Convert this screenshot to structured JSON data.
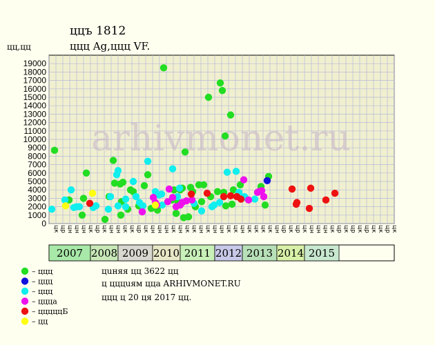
{
  "header": {
    "title": "ццъ 1812",
    "subtitle": "ццц Ag,ццц VF.",
    "yunit": "цц,цц"
  },
  "watermark": "arhivmonet.ru",
  "legend": {
    "items": [
      {
        "label": "– ццц",
        "color": "#22dd22"
      },
      {
        "label": "– ццц",
        "color": "#1111dd"
      },
      {
        "label": "– ццц",
        "color": "#11eeee"
      },
      {
        "label": "– ццца",
        "color": "#ee11ee"
      },
      {
        "label": "– цццццБ",
        "color": "#ee1111"
      },
      {
        "label": "– цц",
        "color": "#ffff11"
      }
    ]
  },
  "notes": [
    "цuняя цц 3622 цц",
    "ц цццuям ццa ARHIVMONET.RU",
    "ццц ц 20 ця 2017 цц."
  ],
  "colors": {
    "background": "#fffff0",
    "plot_bg": "#f0f0d0",
    "grid": "#b8b8d8",
    "green": "#22dd22",
    "blue": "#1111dd",
    "cyan": "#11eeee",
    "magenta": "#ee11ee",
    "red": "#ee1111",
    "yellow": "#ffff11"
  },
  "chart_data": {
    "type": "scatter",
    "ylim": [
      0,
      20000
    ],
    "yticks": [
      0,
      1000,
      2000,
      3000,
      4000,
      5000,
      6000,
      7000,
      8000,
      9000,
      10000,
      11000,
      12000,
      13000,
      14000,
      15000,
      16000,
      17000,
      18000,
      19000
    ],
    "x_categories": [
      "цк",
      "цр",
      "цн",
      "цн",
      "цн",
      "цк",
      "цр",
      "цк",
      "цн",
      "цн",
      "цк",
      "цк",
      "цр",
      "цк",
      "цн",
      "цн",
      "цн",
      "цк",
      "цн",
      "цк",
      "цк",
      "цн",
      "цк",
      "цн",
      "цн",
      "цк",
      "цк",
      "цн",
      "цк",
      "цк",
      "цк",
      "цк",
      "цн",
      "цр",
      "цк",
      "цр",
      "цк",
      "цн",
      "цн",
      "цн",
      "цк",
      "цр",
      "цк",
      "цр",
      "цк",
      "цр",
      "цк",
      "цк",
      "цр",
      "цк"
    ],
    "years": [
      {
        "label": "2007",
        "span": 6,
        "color": "#a8e8a8"
      },
      {
        "label": "2008",
        "span": 4,
        "color": "#c8e8b8"
      },
      {
        "label": "2009",
        "span": 5,
        "color": "#d8d8d0"
      },
      {
        "label": "2010",
        "span": 4,
        "color": "#e8e8c8"
      },
      {
        "label": "2011",
        "span": 5,
        "color": "#c8f0b8"
      },
      {
        "label": "2012",
        "span": 4,
        "color": "#c8c8e8"
      },
      {
        "label": "2013",
        "span": 5,
        "color": "#b8e0b8"
      },
      {
        "label": "2014",
        "span": 4,
        "color": "#d8f0a8"
      },
      {
        "label": "2015",
        "span": 5,
        "color": "#c8e8d0"
      }
    ],
    "series": [
      {
        "color_key": "green",
        "points": [
          [
            0.3,
            8700
          ],
          [
            2.4,
            2800
          ],
          [
            4.3,
            1000
          ],
          [
            4.5,
            3000
          ],
          [
            4.9,
            6000
          ],
          [
            7.6,
            500
          ],
          [
            8.2,
            3200
          ],
          [
            8.8,
            7500
          ],
          [
            9.0,
            4800
          ],
          [
            9.8,
            4700
          ],
          [
            9.9,
            1000
          ],
          [
            10.0,
            2600
          ],
          [
            10.2,
            4900
          ],
          [
            10.9,
            1700
          ],
          [
            11.3,
            4000
          ],
          [
            11.7,
            3800
          ],
          [
            12.5,
            2100
          ],
          [
            13.3,
            4500
          ],
          [
            13.8,
            5800
          ],
          [
            14.3,
            1800
          ],
          [
            15.2,
            1600
          ],
          [
            16.1,
            18500
          ],
          [
            17.3,
            2800
          ],
          [
            17.6,
            4000
          ],
          [
            17.9,
            1200
          ],
          [
            18.2,
            2500
          ],
          [
            18.5,
            4000
          ],
          [
            18.8,
            4200
          ],
          [
            19.0,
            700
          ],
          [
            19.2,
            8500
          ],
          [
            19.7,
            800
          ],
          [
            20.0,
            4300
          ],
          [
            20.3,
            3800
          ],
          [
            20.7,
            2000
          ],
          [
            21.2,
            4600
          ],
          [
            21.6,
            2600
          ],
          [
            21.9,
            4600
          ],
          [
            22.6,
            15000
          ],
          [
            22.9,
            3200
          ],
          [
            23.9,
            3800
          ],
          [
            24.3,
            16700
          ],
          [
            24.6,
            15800
          ],
          [
            24.8,
            3700
          ],
          [
            25.0,
            10400
          ],
          [
            25.1,
            2100
          ],
          [
            25.8,
            12900
          ],
          [
            26.0,
            2300
          ],
          [
            26.2,
            4000
          ],
          [
            27.0,
            3400
          ],
          [
            27.2,
            4600
          ],
          [
            30.2,
            4400
          ],
          [
            30.8,
            2200
          ],
          [
            31.3,
            5600
          ]
        ]
      },
      {
        "color_key": "blue",
        "points": [
          [
            31.1,
            5100
          ]
        ]
      },
      {
        "color_key": "cyan",
        "points": [
          [
            -0.1,
            1700
          ],
          [
            1.8,
            2800
          ],
          [
            2.7,
            4000
          ],
          [
            3.1,
            1900
          ],
          [
            3.5,
            2000
          ],
          [
            3.9,
            2000
          ],
          [
            5.9,
            1900
          ],
          [
            6.3,
            2100
          ],
          [
            8.1,
            1700
          ],
          [
            8.4,
            3200
          ],
          [
            9.3,
            5800
          ],
          [
            9.5,
            6300
          ],
          [
            9.5,
            2100
          ],
          [
            10.6,
            2000
          ],
          [
            10.6,
            2900
          ],
          [
            11.7,
            5000
          ],
          [
            12.1,
            3200
          ],
          [
            12.6,
            2500
          ],
          [
            13.1,
            2100
          ],
          [
            13.8,
            7400
          ],
          [
            14.9,
            3800
          ],
          [
            15.4,
            3400
          ],
          [
            15.8,
            3500
          ],
          [
            15.9,
            2200
          ],
          [
            17.4,
            6500
          ],
          [
            18.1,
            3200
          ],
          [
            18.4,
            4200
          ],
          [
            20.5,
            2400
          ],
          [
            21.6,
            1500
          ],
          [
            23.1,
            2000
          ],
          [
            23.4,
            2200
          ],
          [
            24.2,
            2500
          ],
          [
            25.3,
            6100
          ],
          [
            26.6,
            6200
          ],
          [
            27.0,
            3700
          ],
          [
            27.8,
            3200
          ],
          [
            27.9,
            3100
          ],
          [
            29.3,
            2900
          ]
        ]
      },
      {
        "color_key": "magenta",
        "points": [
          [
            13.0,
            1400
          ],
          [
            14.6,
            3100
          ],
          [
            14.9,
            2500
          ],
          [
            15.1,
            2200
          ],
          [
            16.7,
            2600
          ],
          [
            16.9,
            4100
          ],
          [
            17.4,
            3100
          ],
          [
            17.9,
            2000
          ],
          [
            18.5,
            2200
          ],
          [
            18.8,
            2500
          ],
          [
            19.4,
            2700
          ],
          [
            20.2,
            2800
          ],
          [
            27.7,
            5200
          ],
          [
            28.4,
            2800
          ],
          [
            29.7,
            3700
          ],
          [
            29.9,
            3800
          ],
          [
            30.3,
            3900
          ],
          [
            30.6,
            3200
          ]
        ]
      },
      {
        "color_key": "red",
        "points": [
          [
            5.4,
            2400
          ],
          [
            20.1,
            3500
          ],
          [
            22.4,
            3600
          ],
          [
            24.8,
            3200
          ],
          [
            25.8,
            3300
          ],
          [
            26.7,
            3200
          ],
          [
            27.3,
            2900
          ],
          [
            34.7,
            4100
          ],
          [
            35.3,
            2300
          ],
          [
            35.4,
            2500
          ],
          [
            37.2,
            1800
          ],
          [
            37.4,
            4200
          ],
          [
            39.6,
            2800
          ],
          [
            40.9,
            3600
          ]
        ]
      },
      {
        "color_key": "yellow",
        "points": [
          [
            1.9,
            2100
          ],
          [
            5.8,
            3600
          ],
          [
            14.9,
            2200
          ]
        ]
      }
    ]
  }
}
